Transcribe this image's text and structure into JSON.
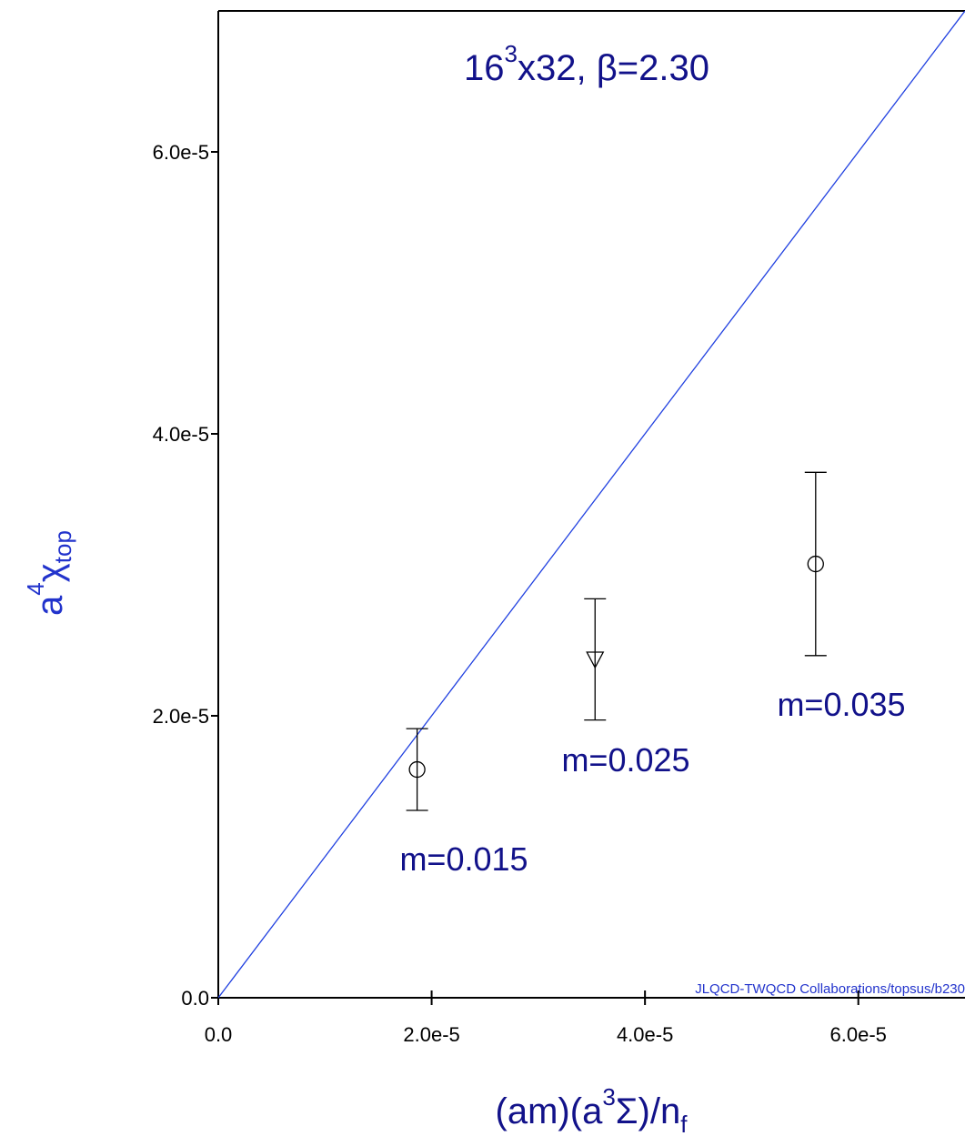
{
  "chart_data": {
    "type": "scatter",
    "title": [
      "16",
      "3",
      "x32, β=2.30"
    ],
    "xlabel": [
      "(am)(a",
      "3",
      "Σ)/n",
      "f"
    ],
    "ylabel": [
      "a",
      "4",
      "χ",
      "top"
    ],
    "xlim": [
      0,
      7e-05
    ],
    "ylim": [
      0,
      7e-05
    ],
    "xticks": [
      {
        "value": 0,
        "label": "0.0"
      },
      {
        "value": 2e-05,
        "label": "2.0e-5"
      },
      {
        "value": 4e-05,
        "label": "4.0e-5"
      },
      {
        "value": 6e-05,
        "label": "6.0e-5"
      }
    ],
    "yticks": [
      {
        "value": 0,
        "label": "0.0"
      },
      {
        "value": 2e-05,
        "label": "2.0e-5"
      },
      {
        "value": 4e-05,
        "label": "4.0e-5"
      },
      {
        "value": 6e-05,
        "label": "6.0e-5"
      }
    ],
    "series": [
      {
        "color": "#000000",
        "x": [
          1.864e-05,
          3.532e-05,
          5.6e-05
        ],
        "values": [
          1.619e-05,
          2.4e-05,
          3.077e-05
        ],
        "errors": [
          2.9e-06,
          4.3e-06,
          6.5e-06
        ],
        "markers": [
          "circle",
          "triangle-down",
          "circle"
        ],
        "labels": [
          "m=0.015",
          "m=0.025",
          "m=0.035"
        ]
      }
    ],
    "reference_line": {
      "color": "#2040e0",
      "x": [
        0,
        7e-05
      ],
      "values": [
        0,
        7e-05
      ]
    },
    "watermark": "JLQCD-TWQCD Collaborations/topsus/b230"
  }
}
